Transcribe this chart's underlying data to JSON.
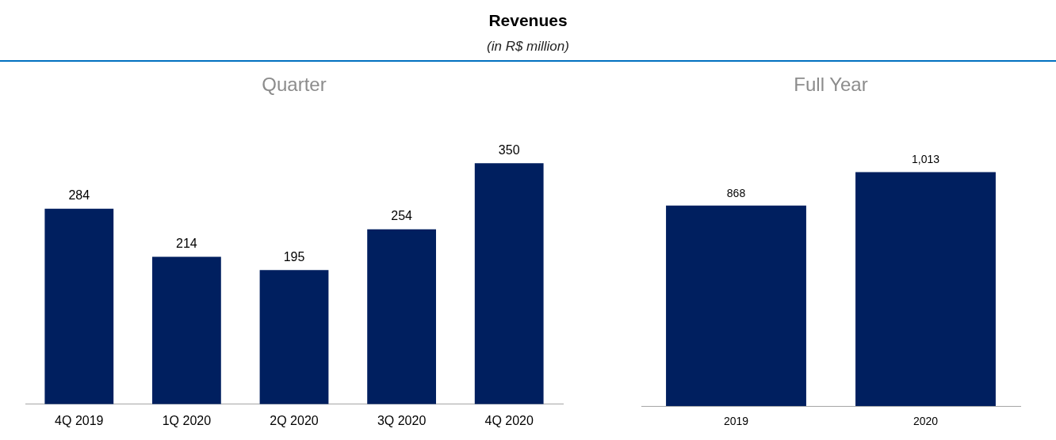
{
  "chart_data": [
    {
      "type": "other",
      "title": "Revenues",
      "subtitle": "(in R$ million)"
    },
    {
      "type": "bar",
      "title": "Quarter",
      "categories": [
        "4Q 2019",
        "1Q 2020",
        "2Q 2020",
        "3Q 2020",
        "4Q 2020"
      ],
      "values": [
        284,
        214,
        195,
        254,
        350
      ],
      "color": "#001f5f",
      "data_labels": true,
      "grid": false,
      "legend": false,
      "tick_labels": "x"
    },
    {
      "type": "bar",
      "title": "Full Year",
      "categories": [
        "2019",
        "2020"
      ],
      "values": [
        868,
        1013
      ],
      "value_labels": [
        "868",
        "1,013"
      ],
      "color": "#001f5f",
      "grid": false,
      "legend": false,
      "tick_labels": "x"
    }
  ]
}
